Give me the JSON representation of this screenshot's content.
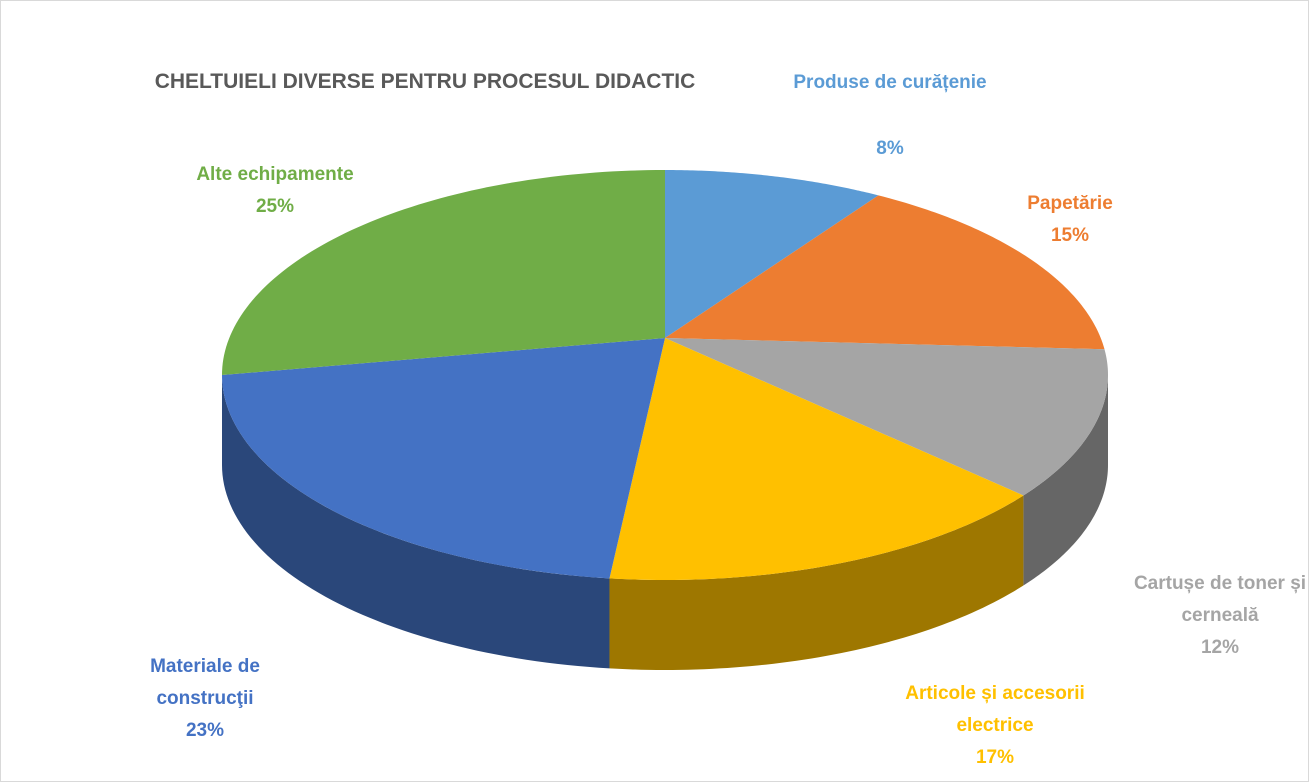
{
  "chart_data": {
    "type": "pie",
    "title": "CHELTUIELI DIVERSE PENTRU PROCESUL DIDACTIC",
    "categories": [
      "Produse de curățenie",
      "Papetărie",
      "Cartușe de toner și cerneală",
      "Articole și accesorii electrice",
      "Materiale de construcţii",
      "Alte echipamente"
    ],
    "values": [
      8,
      15,
      12,
      17,
      23,
      25
    ],
    "value_labels": [
      "8%",
      "15%",
      "12%",
      "17%",
      "23%",
      "25%"
    ],
    "colors": [
      "#5b9bd5",
      "#ed7d31",
      "#a5a5a5",
      "#ffc000",
      "#4472c4",
      "#70ad47"
    ]
  }
}
